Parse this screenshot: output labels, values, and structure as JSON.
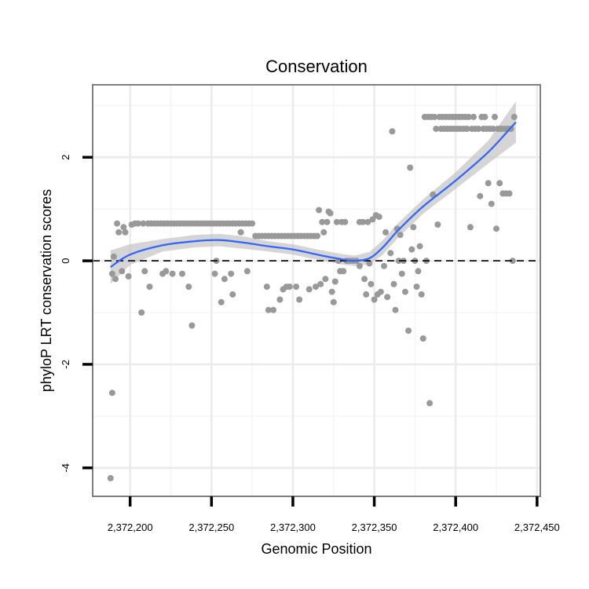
{
  "chart_data": {
    "type": "scatter",
    "title": "Conservation",
    "xlabel": "Genomic Position",
    "ylabel": "phyloP LRT conservation scores",
    "xlim": [
      2372177,
      2372452
    ],
    "ylim": [
      -4.55,
      3.4
    ],
    "x_ticks": [
      2372200,
      2372250,
      2372300,
      2372350,
      2372400,
      2372450
    ],
    "x_tick_labels": [
      "2,372,200",
      "2,372,250",
      "2,372,300",
      "2,372,350",
      "2,372,400",
      "2,372,450"
    ],
    "y_ticks": [
      -4,
      -2,
      0,
      2
    ],
    "y_tick_labels": [
      "-4",
      "-2",
      "0",
      "2"
    ],
    "reference_line": {
      "y": 0,
      "style": "dashed",
      "color": "#000000"
    },
    "point_color": "#999999",
    "smooth_color": "#3366ff",
    "band_color": "#bfbfbf",
    "points": [
      [
        2372188,
        -4.2
      ],
      [
        2372189,
        -2.55
      ],
      [
        2372189,
        -0.25
      ],
      [
        2372190,
        0.08
      ],
      [
        2372191,
        -0.35
      ],
      [
        2372192,
        0.72
      ],
      [
        2372193,
        0.55
      ],
      [
        2372195,
        -0.2
      ],
      [
        2372196,
        0.65
      ],
      [
        2372197,
        0.55
      ],
      [
        2372199,
        -0.3
      ],
      [
        2372201,
        0.7
      ],
      [
        2372203,
        0.72
      ],
      [
        2372205,
        0.72
      ],
      [
        2372207,
        -1.0
      ],
      [
        2372208,
        0.72
      ],
      [
        2372209,
        -0.2
      ],
      [
        2372211,
        0.72
      ],
      [
        2372212,
        -0.5
      ],
      [
        2372213,
        0.72
      ],
      [
        2372215,
        0.72
      ],
      [
        2372217,
        0.72
      ],
      [
        2372219,
        0.72
      ],
      [
        2372220,
        -0.25
      ],
      [
        2372221,
        0.72
      ],
      [
        2372222,
        -0.2
      ],
      [
        2372223,
        0.72
      ],
      [
        2372225,
        0.72
      ],
      [
        2372226,
        -0.25
      ],
      [
        2372227,
        0.72
      ],
      [
        2372229,
        0.72
      ],
      [
        2372231,
        0.72
      ],
      [
        2372232,
        -0.25
      ],
      [
        2372233,
        0.72
      ],
      [
        2372235,
        0.72
      ],
      [
        2372236,
        -0.5
      ],
      [
        2372237,
        0.72
      ],
      [
        2372238,
        -1.25
      ],
      [
        2372239,
        0.72
      ],
      [
        2372241,
        0.72
      ],
      [
        2372243,
        0.72
      ],
      [
        2372245,
        0.72
      ],
      [
        2372247,
        0.72
      ],
      [
        2372249,
        0.72
      ],
      [
        2372251,
        0.72
      ],
      [
        2372252,
        -0.25
      ],
      [
        2372253,
        0.72
      ],
      [
        2372253,
        0.0
      ],
      [
        2372255,
        0.72
      ],
      [
        2372256,
        -0.8
      ],
      [
        2372257,
        0.72
      ],
      [
        2372258,
        -0.35
      ],
      [
        2372259,
        0.72
      ],
      [
        2372261,
        0.72
      ],
      [
        2372262,
        -0.25
      ],
      [
        2372263,
        0.72
      ],
      [
        2372263,
        -0.65
      ],
      [
        2372265,
        0.72
      ],
      [
        2372267,
        0.72
      ],
      [
        2372268,
        0.55
      ],
      [
        2372269,
        0.72
      ],
      [
        2372271,
        0.72
      ],
      [
        2372272,
        -0.2
      ],
      [
        2372273,
        0.72
      ],
      [
        2372275,
        0.72
      ],
      [
        2372277,
        0.48
      ],
      [
        2372279,
        0.48
      ],
      [
        2372281,
        0.48
      ],
      [
        2372283,
        0.48
      ],
      [
        2372284,
        -0.5
      ],
      [
        2372285,
        0.48
      ],
      [
        2372285,
        -0.95
      ],
      [
        2372287,
        0.48
      ],
      [
        2372288,
        -0.95
      ],
      [
        2372289,
        0.48
      ],
      [
        2372291,
        0.48
      ],
      [
        2372292,
        -0.75
      ],
      [
        2372293,
        0.48
      ],
      [
        2372294,
        -0.55
      ],
      [
        2372295,
        0.48
      ],
      [
        2372296,
        -0.5
      ],
      [
        2372297,
        0.48
      ],
      [
        2372298,
        -0.5
      ],
      [
        2372299,
        0.48
      ],
      [
        2372301,
        0.48
      ],
      [
        2372302,
        -0.5
      ],
      [
        2372303,
        0.48
      ],
      [
        2372304,
        -0.75
      ],
      [
        2372305,
        0.48
      ],
      [
        2372307,
        0.48
      ],
      [
        2372309,
        0.48
      ],
      [
        2372310,
        -0.55
      ],
      [
        2372311,
        0.48
      ],
      [
        2372313,
        0.48
      ],
      [
        2372314,
        -0.5
      ],
      [
        2372315,
        0.48
      ],
      [
        2372316,
        0.98
      ],
      [
        2372317,
        -0.45
      ],
      [
        2372318,
        0.75
      ],
      [
        2372319,
        0.55
      ],
      [
        2372320,
        -0.35
      ],
      [
        2372321,
        0.75
      ],
      [
        2372322,
        0.95
      ],
      [
        2372323,
        0.92
      ],
      [
        2372324,
        -0.6
      ],
      [
        2372325,
        -0.8
      ],
      [
        2372326,
        -0.4
      ],
      [
        2372327,
        0.75
      ],
      [
        2372328,
        0.0
      ],
      [
        2372329,
        -0.2
      ],
      [
        2372330,
        0.75
      ],
      [
        2372331,
        -0.2
      ],
      [
        2372332,
        0.75
      ],
      [
        2372333,
        0.0
      ],
      [
        2372335,
        0.0
      ],
      [
        2372337,
        0.0
      ],
      [
        2372339,
        0.0
      ],
      [
        2372341,
        -0.1
      ],
      [
        2372341,
        0.75
      ],
      [
        2372343,
        0.75
      ],
      [
        2372344,
        -0.35
      ],
      [
        2372345,
        -0.65
      ],
      [
        2372346,
        0.75
      ],
      [
        2372347,
        -0.05
      ],
      [
        2372348,
        -0.45
      ],
      [
        2372349,
        0.8
      ],
      [
        2372350,
        -0.75
      ],
      [
        2372351,
        0.88
      ],
      [
        2372352,
        -0.65
      ],
      [
        2372353,
        0.85
      ],
      [
        2372354,
        -0.6
      ],
      [
        2372356,
        -0.1
      ],
      [
        2372357,
        0.55
      ],
      [
        2372358,
        -0.7
      ],
      [
        2372360,
        0.15
      ],
      [
        2372361,
        2.5
      ],
      [
        2372362,
        -0.45
      ],
      [
        2372363,
        -0.95
      ],
      [
        2372364,
        0.62
      ],
      [
        2372365,
        0.0
      ],
      [
        2372366,
        0.5
      ],
      [
        2372367,
        -0.25
      ],
      [
        2372368,
        0.0
      ],
      [
        2372369,
        -0.6
      ],
      [
        2372371,
        -1.35
      ],
      [
        2372372,
        1.8
      ],
      [
        2372373,
        0.22
      ],
      [
        2372374,
        0.65
      ],
      [
        2372375,
        0.0
      ],
      [
        2372376,
        -0.5
      ],
      [
        2372377,
        -0.2
      ],
      [
        2372378,
        0.28
      ],
      [
        2372379,
        -0.65
      ],
      [
        2372380,
        -1.5
      ],
      [
        2372381,
        2.78
      ],
      [
        2372382,
        0.0
      ],
      [
        2372383,
        2.78
      ],
      [
        2372384,
        -2.75
      ],
      [
        2372385,
        2.78
      ],
      [
        2372386,
        1.28
      ],
      [
        2372387,
        2.78
      ],
      [
        2372388,
        2.55
      ],
      [
        2372389,
        0.7
      ],
      [
        2372390,
        2.78
      ],
      [
        2372391,
        2.55
      ],
      [
        2372392,
        2.78
      ],
      [
        2372393,
        2.55
      ],
      [
        2372394,
        2.78
      ],
      [
        2372395,
        2.55
      ],
      [
        2372396,
        2.78
      ],
      [
        2372397,
        2.55
      ],
      [
        2372398,
        2.78
      ],
      [
        2372399,
        2.55
      ],
      [
        2372400,
        2.78
      ],
      [
        2372401,
        2.55
      ],
      [
        2372402,
        2.78
      ],
      [
        2372403,
        2.55
      ],
      [
        2372404,
        2.78
      ],
      [
        2372405,
        2.55
      ],
      [
        2372406,
        2.78
      ],
      [
        2372407,
        2.55
      ],
      [
        2372408,
        2.78
      ],
      [
        2372409,
        0.65
      ],
      [
        2372410,
        2.55
      ],
      [
        2372411,
        2.78
      ],
      [
        2372412,
        2.55
      ],
      [
        2372414,
        2.55
      ],
      [
        2372415,
        1.25
      ],
      [
        2372416,
        2.78
      ],
      [
        2372417,
        2.55
      ],
      [
        2372418,
        2.78
      ],
      [
        2372419,
        2.55
      ],
      [
        2372420,
        1.5
      ],
      [
        2372421,
        2.55
      ],
      [
        2372422,
        1.1
      ],
      [
        2372423,
        2.55
      ],
      [
        2372424,
        2.78
      ],
      [
        2372425,
        0.62
      ],
      [
        2372426,
        2.55
      ],
      [
        2372427,
        1.5
      ],
      [
        2372428,
        2.55
      ],
      [
        2372429,
        1.3
      ],
      [
        2372430,
        2.55
      ],
      [
        2372431,
        1.3
      ],
      [
        2372432,
        2.55
      ],
      [
        2372433,
        1.3
      ],
      [
        2372434,
        2.55
      ],
      [
        2372435,
        0.0
      ],
      [
        2372436,
        2.78
      ]
    ],
    "smooth": {
      "x": [
        2372188,
        2372200,
        2372220,
        2372240,
        2372255,
        2372270,
        2372285,
        2372300,
        2372315,
        2372330,
        2372338,
        2372347,
        2372355,
        2372365,
        2372380,
        2372400,
        2372420,
        2372437
      ],
      "y": [
        -0.12,
        0.12,
        0.3,
        0.38,
        0.4,
        0.35,
        0.28,
        0.22,
        0.12,
        0.03,
        0.0,
        0.05,
        0.25,
        0.6,
        1.05,
        1.55,
        2.1,
        2.68
      ],
      "se": [
        0.32,
        0.2,
        0.12,
        0.12,
        0.12,
        0.12,
        0.1,
        0.1,
        0.1,
        0.1,
        0.1,
        0.12,
        0.14,
        0.14,
        0.14,
        0.16,
        0.22,
        0.4
      ]
    }
  }
}
